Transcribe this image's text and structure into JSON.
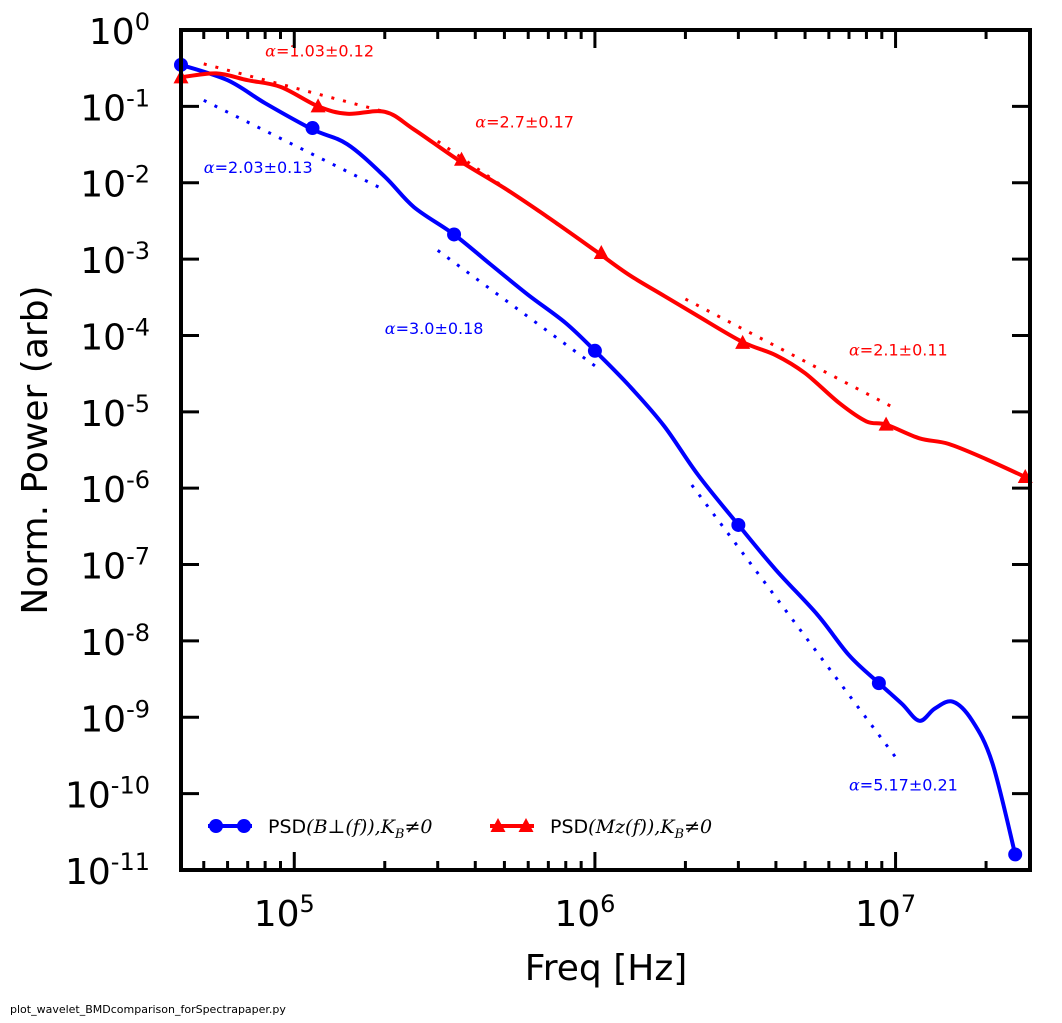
{
  "footer": "plot_wavelet_BMDcomparison_forSpectrapaper.py",
  "chart_data": {
    "type": "line",
    "xscale": "log",
    "yscale": "log",
    "xlabel": "Freq [Hz]",
    "ylabel": "Norm. Power (arb)",
    "xlim": [
      42000,
      28000000
    ],
    "ylim": [
      1e-11,
      1
    ],
    "x_ticks": [
      {
        "value": 100000,
        "base": "10",
        "exp": "5"
      },
      {
        "value": 1000000,
        "base": "10",
        "exp": "6"
      },
      {
        "value": 10000000,
        "base": "10",
        "exp": "7"
      }
    ],
    "y_ticks": [
      {
        "value": 1,
        "base": "10",
        "exp": "0"
      },
      {
        "value": 0.1,
        "base": "10",
        "exp": "-1"
      },
      {
        "value": 0.01,
        "base": "10",
        "exp": "-2"
      },
      {
        "value": 0.001,
        "base": "10",
        "exp": "-3"
      },
      {
        "value": 0.0001,
        "base": "10",
        "exp": "-4"
      },
      {
        "value": 1e-05,
        "base": "10",
        "exp": "-5"
      },
      {
        "value": 1e-06,
        "base": "10",
        "exp": "-6"
      },
      {
        "value": 1e-07,
        "base": "10",
        "exp": "-7"
      },
      {
        "value": 1e-08,
        "base": "10",
        "exp": "-8"
      },
      {
        "value": 1e-09,
        "base": "10",
        "exp": "-9"
      },
      {
        "value": 1e-10,
        "base": "10",
        "exp": "-10"
      },
      {
        "value": 1e-11,
        "base": "10",
        "exp": "-11"
      }
    ],
    "series": [
      {
        "name": "PSD(B⊥(f)), K_B≠0",
        "legend_prefix": "PSD",
        "legend_math": "(B⊥(f)),K",
        "legend_sub": "B",
        "legend_suffix": "≠0",
        "color": "#0000ff",
        "marker": "circle",
        "curve": [
          [
            42000,
            0.35
          ],
          [
            60000,
            0.22
          ],
          [
            80000,
            0.11
          ],
          [
            115000,
            0.05
          ],
          [
            150000,
            0.032
          ],
          [
            200000,
            0.012
          ],
          [
            250000,
            0.0048
          ],
          [
            340000,
            0.0021
          ],
          [
            450000,
            0.00085
          ],
          [
            600000,
            0.00034
          ],
          [
            800000,
            0.000145
          ],
          [
            1000000,
            6.3e-05
          ],
          [
            1300000,
            2.2e-05
          ],
          [
            1700000,
            6.5e-06
          ],
          [
            2200000,
            1.5e-06
          ],
          [
            3000000,
            3.3e-07
          ],
          [
            4000000,
            8.5e-08
          ],
          [
            5500000,
            2.2e-08
          ],
          [
            7000000,
            6.5e-09
          ],
          [
            8800000,
            2.8e-09
          ],
          [
            10500000,
            1.5e-09
          ],
          [
            12000000,
            9e-10
          ],
          [
            13500000,
            1.3e-09
          ],
          [
            15500000,
            1.6e-09
          ],
          [
            18000000,
            9e-10
          ],
          [
            21000000,
            2.5e-10
          ],
          [
            25000000,
            1.6e-11
          ]
        ],
        "markers": [
          [
            42000,
            0.35
          ],
          [
            115000,
            0.052
          ],
          [
            340000,
            0.0021
          ],
          [
            1000000,
            6.3e-05
          ],
          [
            3000000,
            3.3e-07
          ],
          [
            8800000,
            2.8e-09
          ],
          [
            25000000,
            1.6e-11
          ]
        ]
      },
      {
        "name": "PSD(Mz(f)), K_B≠0",
        "legend_prefix": "PSD",
        "legend_math": "(Mz(f)),K",
        "legend_sub": "B",
        "legend_suffix": "≠0",
        "color": "#ff0000",
        "marker": "triangle",
        "curve": [
          [
            42000,
            0.24
          ],
          [
            55000,
            0.27
          ],
          [
            70000,
            0.22
          ],
          [
            90000,
            0.18
          ],
          [
            120000,
            0.1
          ],
          [
            150000,
            0.08
          ],
          [
            200000,
            0.085
          ],
          [
            250000,
            0.05
          ],
          [
            350000,
            0.02
          ],
          [
            500000,
            0.0085
          ],
          [
            700000,
            0.0035
          ],
          [
            1000000,
            0.0013
          ],
          [
            1300000,
            0.00062
          ],
          [
            1700000,
            0.00033
          ],
          [
            2200000,
            0.00018
          ],
          [
            3100000,
            8.2e-05
          ],
          [
            4000000,
            5.5e-05
          ],
          [
            5000000,
            3.2e-05
          ],
          [
            6500000,
            1.3e-05
          ],
          [
            8000000,
            7.5e-06
          ],
          [
            9300000,
            6.8e-06
          ],
          [
            12000000,
            4.5e-06
          ],
          [
            15000000,
            3.8e-06
          ],
          [
            20000000,
            2.4e-06
          ],
          [
            27000000,
            1.4e-06
          ]
        ],
        "markers": [
          [
            42000,
            0.24
          ],
          [
            120000,
            0.1
          ],
          [
            360000,
            0.02
          ],
          [
            1050000,
            0.0012
          ],
          [
            3100000,
            8e-05
          ],
          [
            9300000,
            6.8e-06
          ],
          [
            27000000,
            1.4e-06
          ]
        ]
      }
    ],
    "fits": [
      {
        "color": "#0000ff",
        "x0": 50000,
        "y0": 0.12,
        "x1": 200000,
        "y1": 0.008
      },
      {
        "color": "#0000ff",
        "x0": 300000,
        "y0": 0.0013,
        "x1": 1000000,
        "y1": 4e-05
      },
      {
        "color": "#0000ff",
        "x0": 2100000,
        "y0": 1.1e-06,
        "x1": 10000000,
        "y1": 3e-10
      },
      {
        "color": "#ff0000",
        "x0": 50000,
        "y0": 0.36,
        "x1": 200000,
        "y1": 0.085
      },
      {
        "color": "#ff0000",
        "x0": 300000,
        "y0": 0.035,
        "x1": 1000000,
        "y1": 0.0013
      },
      {
        "color": "#ff0000",
        "x0": 2000000,
        "y0": 0.0003,
        "x1": 10000000,
        "y1": 1.1e-05
      }
    ],
    "annotations": [
      {
        "alpha": "α",
        "eq": "=",
        "value": "1.03",
        "pm": "±",
        "err": "0.12",
        "color": "#ff0000",
        "x": 80000,
        "y": 0.45
      },
      {
        "alpha": "α",
        "eq": "=",
        "value": "2.7",
        "pm": "±",
        "err": "0.17",
        "color": "#ff0000",
        "x": 400000,
        "y": 0.053
      },
      {
        "alpha": "α",
        "eq": "=",
        "value": "2.03",
        "pm": "±",
        "err": "0.13",
        "color": "#0000ff",
        "x": 50000,
        "y": 0.0135
      },
      {
        "alpha": "α",
        "eq": "=",
        "value": "3.0",
        "pm": "±",
        "err": "0.18",
        "color": "#0000ff",
        "x": 200000,
        "y": 0.000105
      },
      {
        "alpha": "α",
        "eq": "=",
        "value": "2.1",
        "pm": "±",
        "err": "0.11",
        "color": "#ff0000",
        "x": 7000000,
        "y": 5.5e-05
      },
      {
        "alpha": "α",
        "eq": "=",
        "value": "5.17",
        "pm": "±",
        "err": "0.21",
        "color": "#0000ff",
        "x": 7000000,
        "y": 1.1e-10
      }
    ],
    "legend_loc": "lower-left"
  }
}
